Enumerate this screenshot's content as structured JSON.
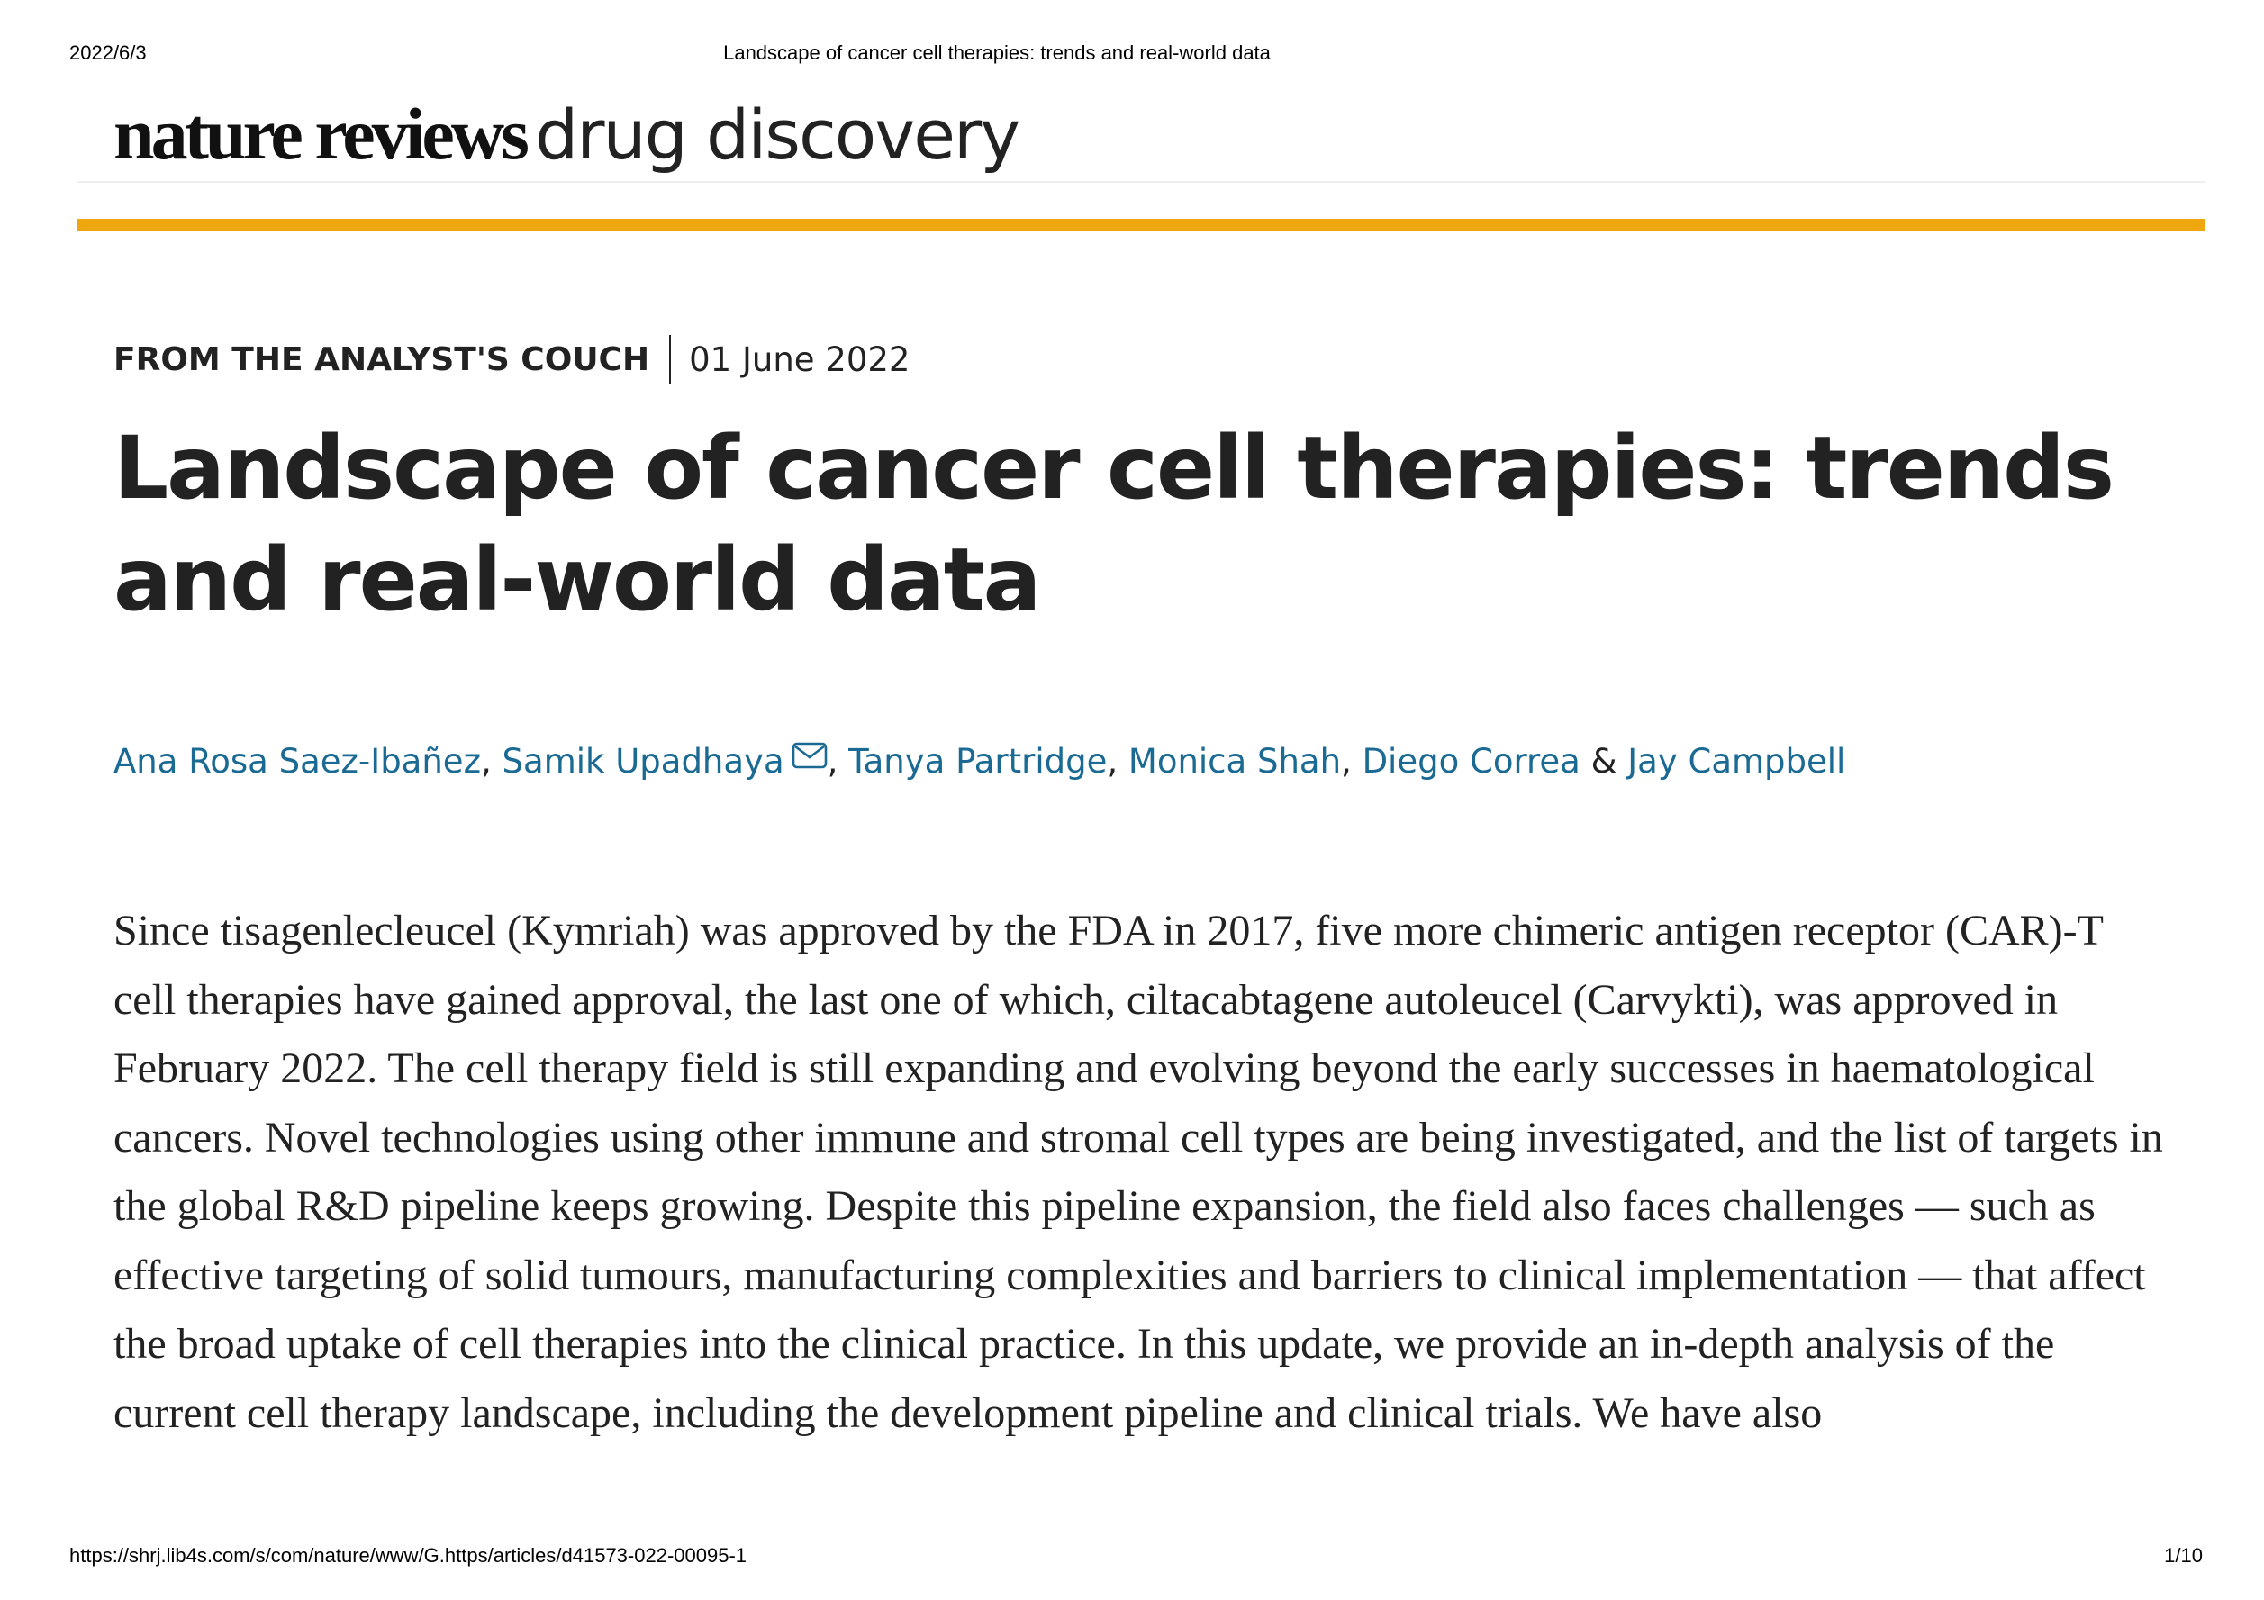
{
  "print_header": {
    "date": "2022/6/3",
    "title": "Landscape of cancer cell therapies: trends and real-world data"
  },
  "masthead": {
    "brand_bold": "nature reviews",
    "brand_light": "drug discovery"
  },
  "colors": {
    "accent_bar": "#eea70f",
    "author_link": "#1a6a94",
    "text": "#222222"
  },
  "article": {
    "type": "FROM THE ANALYST'S COUCH",
    "date": "01 June 2022",
    "title": "Landscape of cancer cell therapies: trends and real-world data",
    "authors": [
      {
        "name": "Ana Rosa Saez-Ibañez"
      },
      {
        "name": "Samik Upadhaya",
        "icon": "mail-icon"
      },
      {
        "name": "Tanya Partridge"
      },
      {
        "name": "Monica Shah"
      },
      {
        "name": "Diego Correa"
      },
      {
        "name": "Jay Campbell"
      }
    ],
    "author_separators": [
      ", ",
      ", ",
      ", ",
      ", ",
      " & "
    ],
    "abstract": "Since tisagenlecleucel (Kymriah) was approved by the FDA in 2017, five more chimeric antigen receptor (CAR)-T cell therapies have gained approval, the last one of which, ciltacabtagene autoleucel (Carvykti), was approved in February 2022. The cell therapy field is still expanding and evolving beyond the early successes in haematological cancers. Novel technologies using other immune and stromal cell types are being investigated, and the list of targets in the global R&D pipeline keeps growing. Despite this pipeline expansion, the field also faces challenges — such as effective targeting of solid tumours, manufacturing complexities and barriers to clinical implementation — that affect the broad uptake of cell therapies into the clinical practice. In this update, we provide an in-depth analysis of the current cell therapy landscape, including the development pipeline and clinical trials. We have also"
  },
  "print_footer": {
    "url": "https://shrj.lib4s.com/s/com/nature/www/G.https/articles/d41573-022-00095-1",
    "page": "1/10"
  }
}
